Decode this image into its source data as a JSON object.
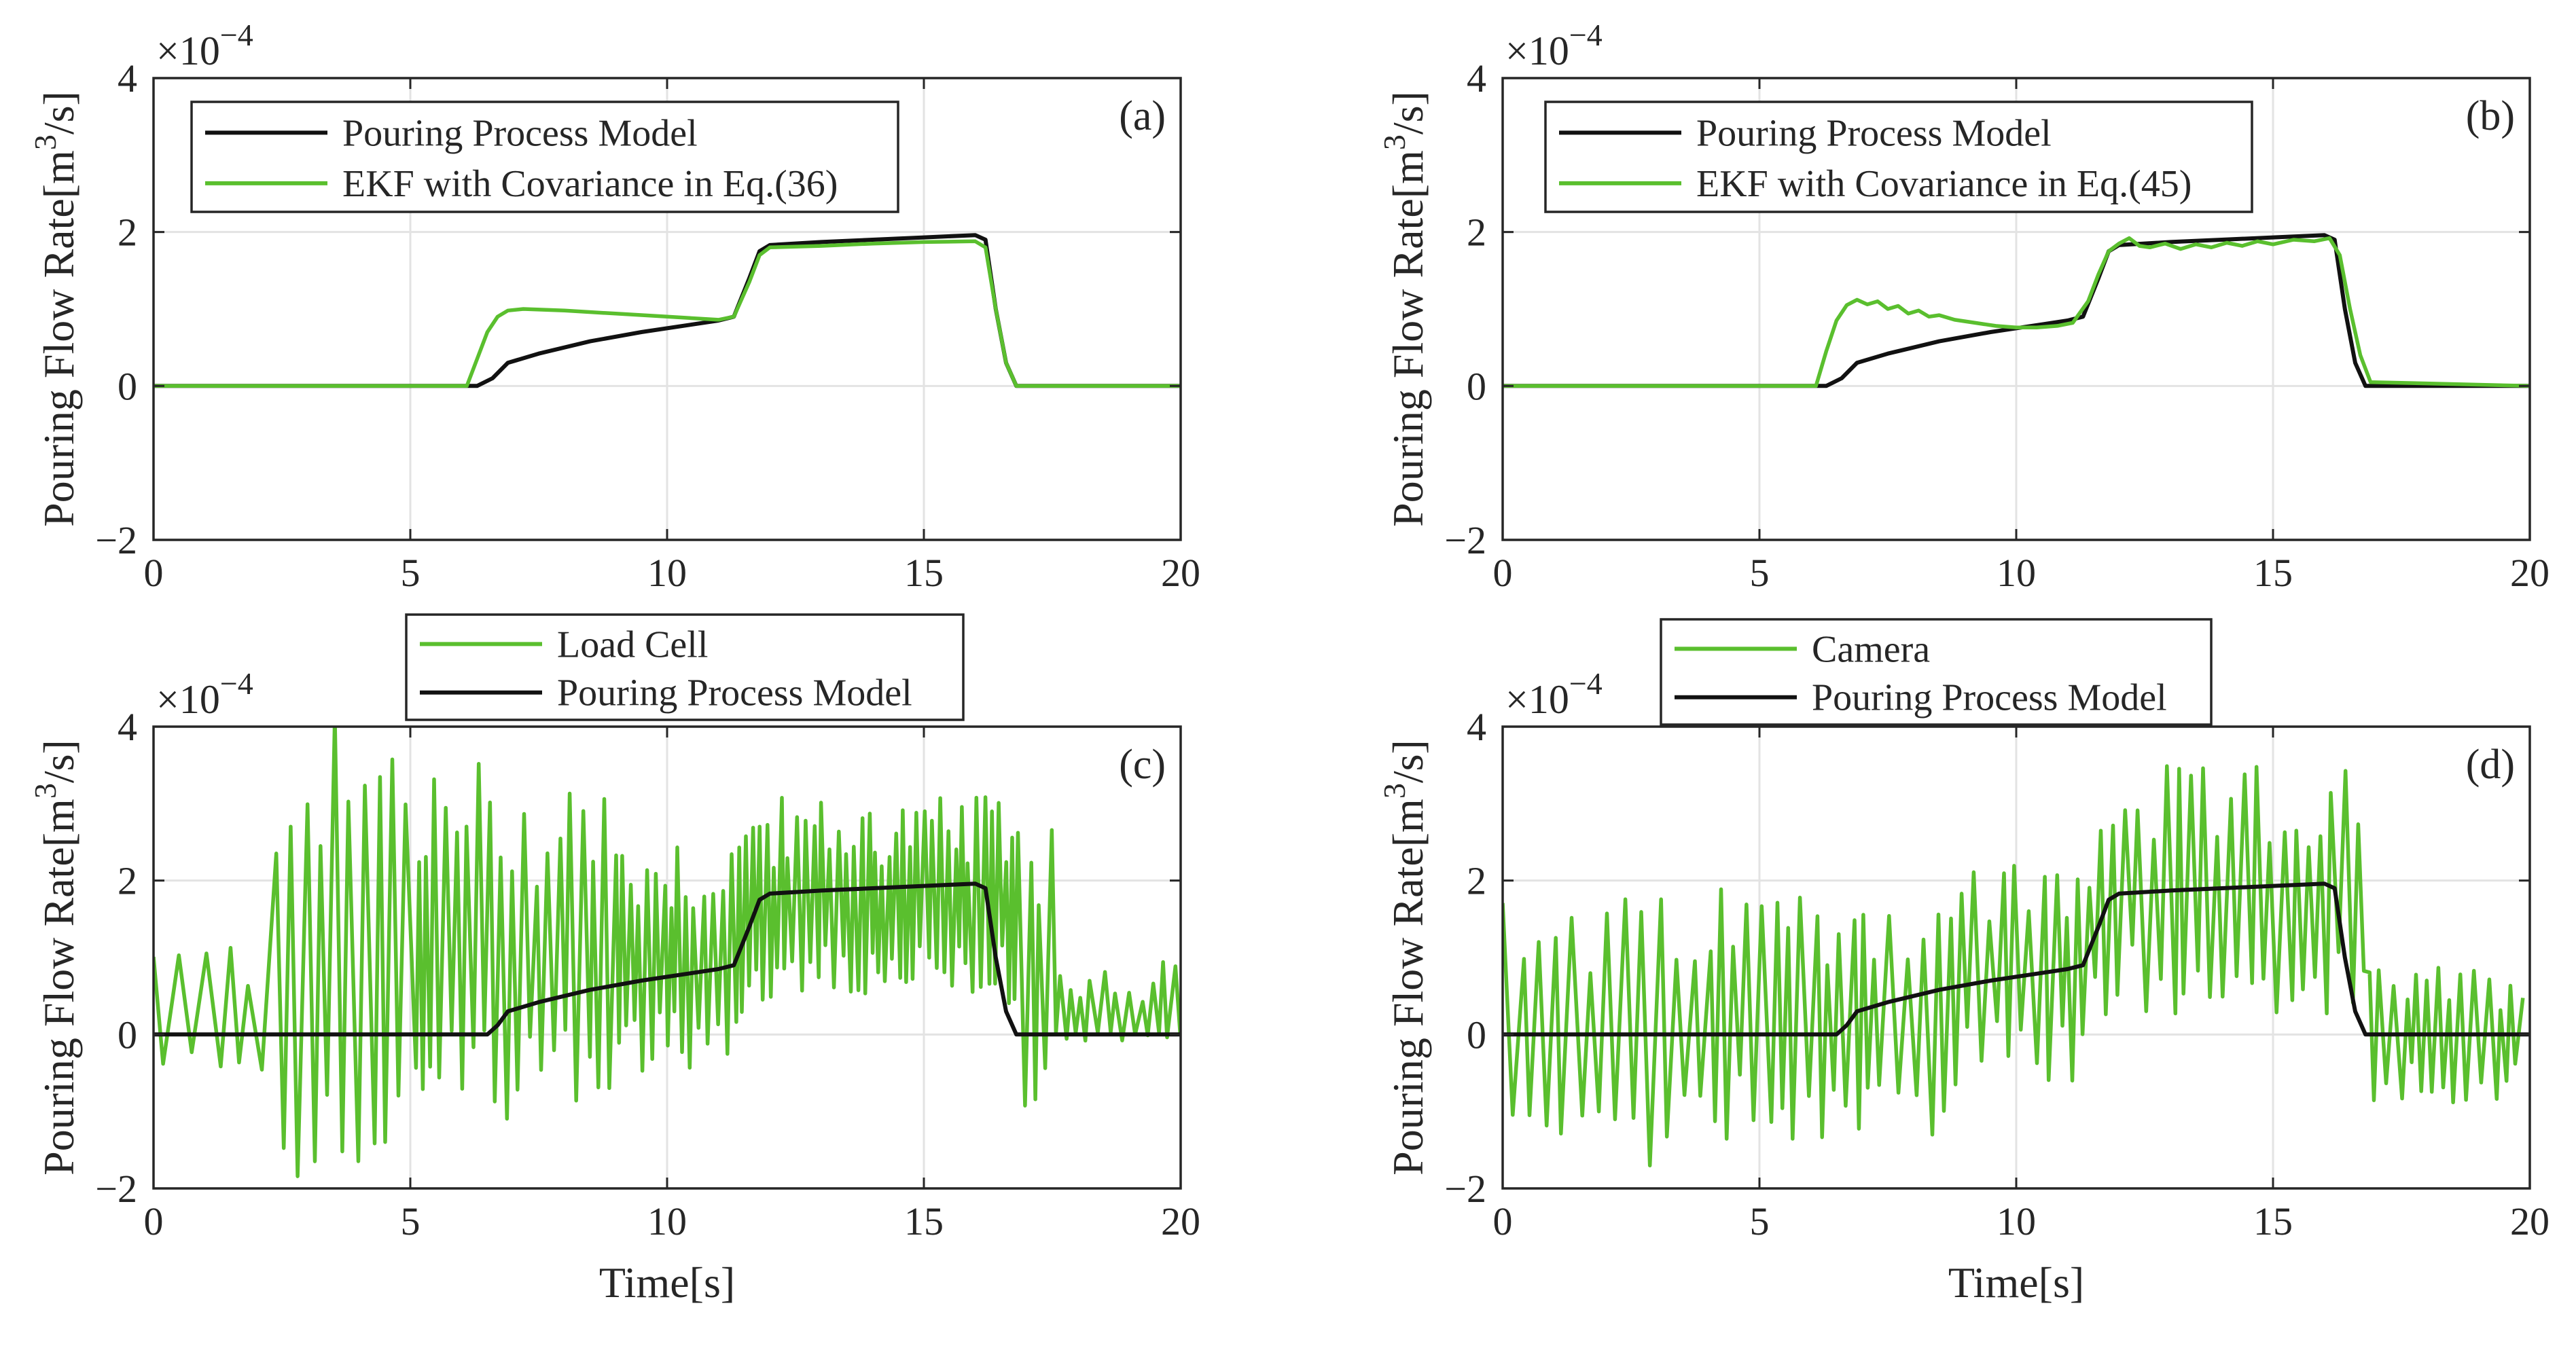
{
  "colors": {
    "model_line": "#111111",
    "green_line": "#5abf2e",
    "grid": "#e3e3e3",
    "axes": "#262626"
  },
  "chart_data": [
    {
      "id": "a",
      "type": "line",
      "panel_label": "(a)",
      "ylabel": "Pouring Flow Rate[m³/s]",
      "ylabel_main": "Pouring Flow Rate[m",
      "ylabel_sup": "3",
      "ylabel_tail": "/s]",
      "xlabel": "",
      "xlim": [
        0,
        20
      ],
      "ylim": [
        -2,
        4
      ],
      "grid": true,
      "xticks": [
        "0",
        "5",
        "10",
        "15",
        "20"
      ],
      "yticks": [
        "−2",
        "0",
        "2",
        "4"
      ],
      "y_exponent": "×10",
      "y_exponent_power": "−4",
      "legend_position": "top-left",
      "legend": [
        "Pouring Process Model",
        "EKF with Covariance in Eq.(36)"
      ],
      "series": [
        {
          "name": "Pouring Process Model",
          "x": [
            0,
            6.3,
            6.6,
            6.9,
            7.5,
            8.5,
            9.5,
            10.5,
            11.0,
            11.3,
            11.6,
            11.8,
            12.0,
            13,
            14,
            15,
            16.0,
            16.2,
            16.4,
            16.6,
            16.8,
            20
          ],
          "y": [
            0,
            0,
            0.1,
            0.3,
            0.42,
            0.58,
            0.7,
            0.8,
            0.85,
            0.9,
            1.4,
            1.75,
            1.83,
            1.87,
            1.9,
            1.93,
            1.96,
            1.9,
            1.0,
            0.3,
            0,
            0
          ]
        },
        {
          "name": "EKF with Covariance in Eq.(36)",
          "x": [
            0,
            6.1,
            6.3,
            6.5,
            6.7,
            6.9,
            7.2,
            8,
            9,
            10,
            11,
            11.3,
            11.6,
            11.8,
            12.0,
            13,
            14,
            15,
            16.0,
            16.2,
            16.4,
            16.6,
            16.8,
            20
          ],
          "y": [
            0,
            0,
            0.35,
            0.7,
            0.9,
            0.98,
            1.0,
            0.98,
            0.94,
            0.9,
            0.86,
            0.9,
            1.35,
            1.7,
            1.8,
            1.82,
            1.85,
            1.87,
            1.88,
            1.8,
            1.0,
            0.3,
            0,
            0
          ]
        }
      ]
    },
    {
      "id": "b",
      "type": "line",
      "panel_label": "(b)",
      "ylabel": "Pouring Flow Rate[m³/s]",
      "ylabel_main": "Pouring Flow Rate[m",
      "ylabel_sup": "3",
      "ylabel_tail": "/s]",
      "xlabel": "",
      "xlim": [
        0,
        20
      ],
      "ylim": [
        -2,
        4
      ],
      "grid": true,
      "xticks": [
        "0",
        "5",
        "10",
        "15",
        "20"
      ],
      "yticks": [
        "−2",
        "0",
        "2",
        "4"
      ],
      "y_exponent": "×10",
      "y_exponent_power": "−4",
      "legend_position": "top-left",
      "legend": [
        "Pouring Process Model",
        "EKF with Covariance in Eq.(45)"
      ],
      "series": [
        {
          "name": "Pouring Process Model",
          "x": [
            0,
            6.3,
            6.6,
            6.9,
            7.5,
            8.5,
            9.5,
            10.5,
            11.0,
            11.3,
            11.6,
            11.8,
            12.0,
            13,
            14,
            15,
            16.0,
            16.2,
            16.4,
            16.6,
            16.8,
            20
          ],
          "y": [
            0,
            0,
            0.1,
            0.3,
            0.42,
            0.58,
            0.7,
            0.8,
            0.85,
            0.9,
            1.4,
            1.75,
            1.83,
            1.87,
            1.9,
            1.93,
            1.96,
            1.9,
            1.0,
            0.3,
            0,
            0
          ]
        },
        {
          "name": "EKF with Covariance in Eq.(45)",
          "x": [
            0,
            6.1,
            6.3,
            6.5,
            6.7,
            6.9,
            7.1,
            7.3,
            7.5,
            7.7,
            7.9,
            8.1,
            8.3,
            8.5,
            8.8,
            9.2,
            9.6,
            10.0,
            10.4,
            10.8,
            11.1,
            11.4,
            11.6,
            11.8,
            12.0,
            12.2,
            12.4,
            12.6,
            12.9,
            13.2,
            13.5,
            13.8,
            14.1,
            14.4,
            14.7,
            15.0,
            15.4,
            15.8,
            16.1,
            16.3,
            16.5,
            16.7,
            16.9,
            20
          ],
          "y": [
            0,
            0,
            0.45,
            0.85,
            1.05,
            1.12,
            1.06,
            1.1,
            1.0,
            1.04,
            0.94,
            0.98,
            0.9,
            0.92,
            0.86,
            0.82,
            0.78,
            0.76,
            0.76,
            0.78,
            0.82,
            1.1,
            1.45,
            1.75,
            1.85,
            1.92,
            1.82,
            1.8,
            1.85,
            1.78,
            1.84,
            1.8,
            1.86,
            1.82,
            1.88,
            1.84,
            1.9,
            1.88,
            1.92,
            1.7,
            1.0,
            0.4,
            0.05,
            0
          ]
        }
      ]
    },
    {
      "id": "c",
      "type": "line",
      "panel_label": "(c)",
      "ylabel": "Pouring Flow Rate[m³/s]",
      "ylabel_main": "Pouring Flow Rate[m",
      "ylabel_sup": "3",
      "ylabel_tail": "/s]",
      "xlabel": "Time[s]",
      "xlim": [
        0,
        20
      ],
      "ylim": [
        -2,
        4
      ],
      "grid": true,
      "xticks": [
        "0",
        "5",
        "10",
        "15",
        "20"
      ],
      "yticks": [
        "−2",
        "0",
        "2",
        "4"
      ],
      "y_exponent": "×10",
      "y_exponent_power": "−4",
      "legend_position": "above-center",
      "legend": [
        "Load Cell",
        "Pouring Process Model"
      ],
      "noise_model": {
        "segments": [
          {
            "x0": 0,
            "x1": 2.3,
            "center": 0.0,
            "amp": [
              1.3,
              0.5
            ],
            "period": 0.22
          },
          {
            "x0": 2.3,
            "x1": 5.0,
            "center": 1.0,
            "amp": [
              3.2,
              3.0
            ],
            "period": 0.15
          },
          {
            "x0": 5.0,
            "x1": 9.0,
            "center": 0.7,
            "amp": [
              3.0,
              1.8
            ],
            "period": 0.1
          },
          {
            "x0": 9.0,
            "x1": 11.5,
            "center": 0.9,
            "amp": [
              1.8,
              1.4
            ],
            "period": 0.08
          },
          {
            "x0": 11.5,
            "x1": 16.8,
            "center": 1.6,
            "amp": [
              1.5,
              1.2
            ],
            "period": 0.07
          },
          {
            "x0": 16.8,
            "x1": 17.5,
            "center": 0.8,
            "amp": [
              2.4,
              2.0
            ],
            "period": 0.1
          },
          {
            "x0": 17.5,
            "x1": 20,
            "center": 0.1,
            "amp": [
              0.9,
              0.2
            ],
            "period": 0.12
          }
        ]
      },
      "series": [
        {
          "name": "Load Cell",
          "x": "noise",
          "y": "noise"
        },
        {
          "name": "Pouring Process Model",
          "x": [
            0,
            6.5,
            6.7,
            6.9,
            7.5,
            8.5,
            9.5,
            10.5,
            11.0,
            11.3,
            11.6,
            11.8,
            12.0,
            13,
            14,
            15,
            16.0,
            16.2,
            16.4,
            16.6,
            16.8,
            20
          ],
          "y": [
            0,
            0,
            0.12,
            0.3,
            0.42,
            0.58,
            0.7,
            0.8,
            0.85,
            0.9,
            1.4,
            1.75,
            1.83,
            1.87,
            1.9,
            1.93,
            1.96,
            1.9,
            1.0,
            0.3,
            0,
            0
          ]
        }
      ]
    },
    {
      "id": "d",
      "type": "line",
      "panel_label": "(d)",
      "ylabel": "Pouring Flow Rate[m³/s]",
      "ylabel_main": "Pouring Flow Rate[m",
      "ylabel_sup": "3",
      "ylabel_tail": "/s]",
      "xlabel": "Time[s]",
      "xlim": [
        0,
        20
      ],
      "ylim": [
        -2,
        4
      ],
      "grid": true,
      "xticks": [
        "0",
        "5",
        "10",
        "15",
        "20"
      ],
      "yticks": [
        "−2",
        "0",
        "2",
        "4"
      ],
      "y_exponent": "×10",
      "y_exponent_power": "−4",
      "legend_position": "above-center",
      "legend": [
        "Camera",
        "Pouring Process Model"
      ],
      "noise_model": {
        "segments": [
          {
            "x0": 0,
            "x1": 4.0,
            "center": 0.0,
            "amp": [
              1.8,
              1.8
            ],
            "period": 0.16
          },
          {
            "x0": 4.0,
            "x1": 9.0,
            "center": 0.3,
            "amp": [
              1.7,
              1.7
            ],
            "period": 0.14
          },
          {
            "x0": 9.0,
            "x1": 11.5,
            "center": 0.8,
            "amp": [
              1.5,
              1.5
            ],
            "period": 0.12
          },
          {
            "x0": 11.5,
            "x1": 16.8,
            "center": 1.7,
            "amp": [
              1.8,
              1.5
            ],
            "period": 0.12
          },
          {
            "x0": 16.8,
            "x1": 20,
            "center": 0.0,
            "amp": [
              0.9,
              0.9
            ],
            "period": 0.12
          }
        ]
      },
      "series": [
        {
          "name": "Camera",
          "x": "noise",
          "y": "noise"
        },
        {
          "name": "Pouring Process Model",
          "x": [
            0,
            6.5,
            6.7,
            6.9,
            7.5,
            8.5,
            9.5,
            10.5,
            11.0,
            11.3,
            11.6,
            11.8,
            12.0,
            13,
            14,
            15,
            16.0,
            16.2,
            16.4,
            16.6,
            16.8,
            20
          ],
          "y": [
            0,
            0,
            0.12,
            0.3,
            0.42,
            0.58,
            0.7,
            0.8,
            0.85,
            0.9,
            1.4,
            1.75,
            1.83,
            1.87,
            1.9,
            1.93,
            1.96,
            1.9,
            1.0,
            0.3,
            0,
            0
          ]
        }
      ]
    }
  ]
}
